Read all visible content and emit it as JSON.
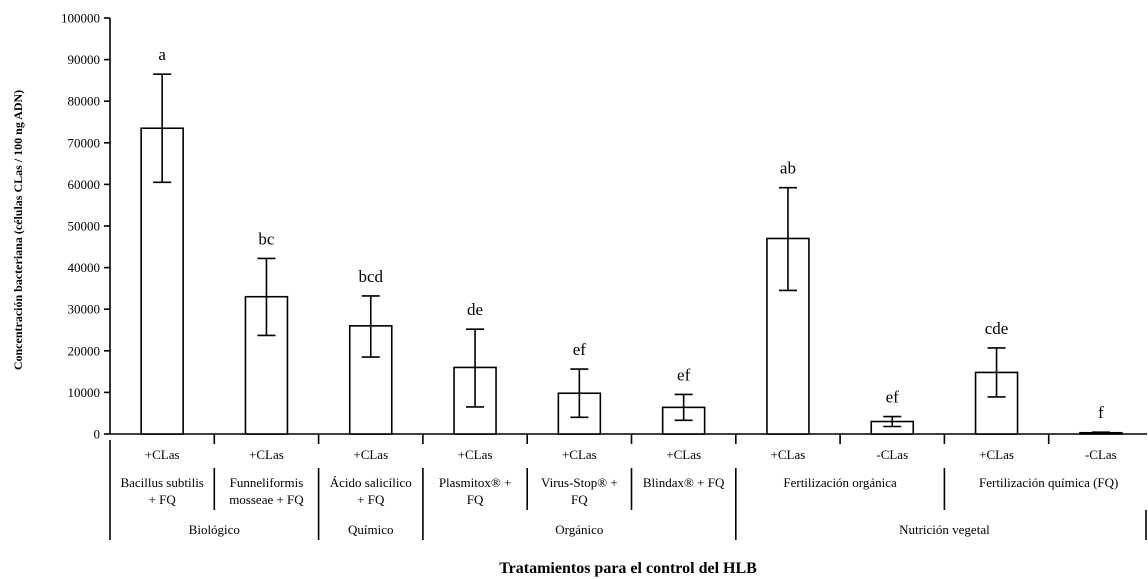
{
  "chart_data": {
    "type": "bar",
    "xlabel": "Tratamientos para el control del HLB",
    "ylabel": "Concentración bacteriana (células  CLas / 100 ng ADN)",
    "ylim": [
      0,
      100000
    ],
    "yticks": [
      0,
      10000,
      20000,
      30000,
      40000,
      50000,
      60000,
      70000,
      80000,
      90000,
      100000
    ],
    "grid": false,
    "legend": "none",
    "bar_fill": "#ffffff",
    "bar_stroke": "#000000",
    "bars": [
      {
        "status": "+CLas",
        "value": 73500,
        "err_low": 60500,
        "err_high": 86500,
        "letter": "a"
      },
      {
        "status": "+CLas",
        "value": 33000,
        "err_low": 23700,
        "err_high": 42200,
        "letter": "bc"
      },
      {
        "status": "+CLas",
        "value": 26000,
        "err_low": 18500,
        "err_high": 33200,
        "letter": "bcd"
      },
      {
        "status": "+CLas",
        "value": 16000,
        "err_low": 6500,
        "err_high": 25200,
        "letter": "de"
      },
      {
        "status": "+CLas",
        "value": 9800,
        "err_low": 4000,
        "err_high": 15600,
        "letter": "ef"
      },
      {
        "status": "+CLas",
        "value": 6400,
        "err_low": 3300,
        "err_high": 9500,
        "letter": "ef"
      },
      {
        "status": "+CLas",
        "value": 47000,
        "err_low": 34500,
        "err_high": 59200,
        "letter": "ab"
      },
      {
        "status": "-CLas",
        "value": 3000,
        "err_low": 1800,
        "err_high": 4200,
        "letter": "ef"
      },
      {
        "status": "+CLas",
        "value": 14800,
        "err_low": 8900,
        "err_high": 20700,
        "letter": "cde"
      },
      {
        "status": "-CLas",
        "value": 300,
        "err_low": 150,
        "err_high": 450,
        "letter": "f"
      }
    ],
    "treatments": [
      {
        "lines": [
          "Bacillus subtilis",
          "+ FQ"
        ],
        "bars": 1
      },
      {
        "lines": [
          "Funneliformis",
          "mosseae + FQ"
        ],
        "bars": 1
      },
      {
        "lines": [
          "Ácido salicílico",
          "+ FQ"
        ],
        "bars": 1
      },
      {
        "lines": [
          "Plasmitox® +",
          "FQ"
        ],
        "bars": 1
      },
      {
        "lines": [
          "Virus-Stop® +",
          "FQ"
        ],
        "bars": 1
      },
      {
        "lines": [
          "Blindax® + FQ"
        ],
        "bars": 1
      },
      {
        "lines": [
          "Fertilización orgánica"
        ],
        "bars": 2
      },
      {
        "lines": [
          "Fertilización química (FQ)"
        ],
        "bars": 2
      }
    ],
    "groups": [
      {
        "name": "Biológico",
        "bars": 2
      },
      {
        "name": "Químico",
        "bars": 1
      },
      {
        "name": "Orgánico",
        "bars": 3
      },
      {
        "name": "Nutrición vegetal",
        "bars": 4
      }
    ]
  }
}
